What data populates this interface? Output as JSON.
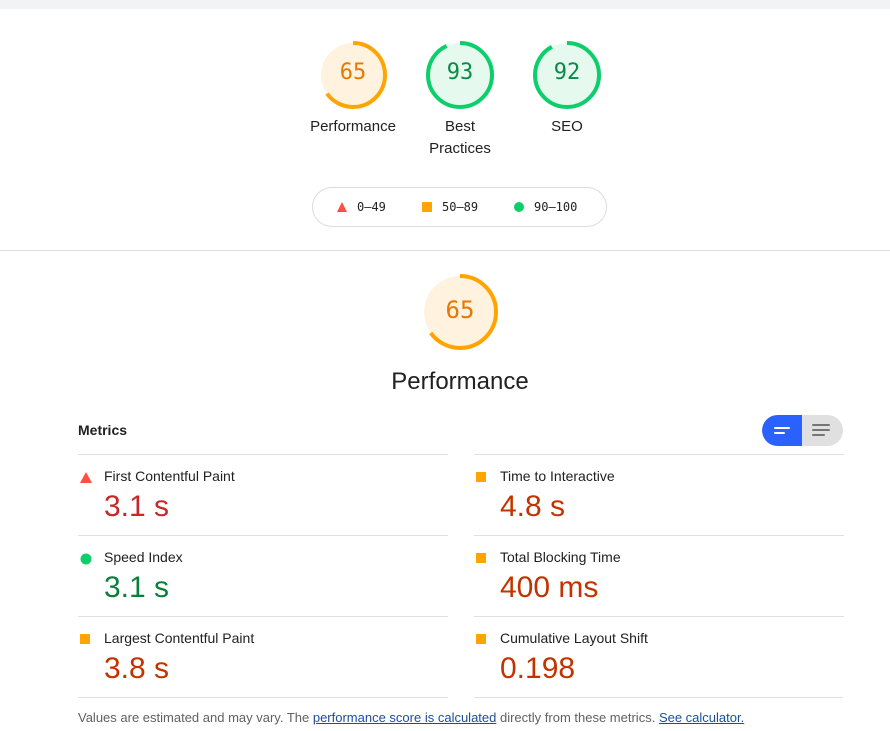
{
  "scores": [
    {
      "value": "65",
      "label": "Performance",
      "score": 65,
      "color": "#ffa400",
      "fill": "#fff3e0"
    },
    {
      "value": "93",
      "label": "Best Practices",
      "score": 93,
      "color": "#0cce6b",
      "fill": "#e6f9ee"
    },
    {
      "value": "92",
      "label": "SEO",
      "score": 92,
      "color": "#0cce6b",
      "fill": "#e6f9ee"
    }
  ],
  "legend": [
    {
      "range": "0–49",
      "shape": "triangle",
      "color": "#ff4e42"
    },
    {
      "range": "50–89",
      "shape": "square",
      "color": "#ffa400"
    },
    {
      "range": "90–100",
      "shape": "circle",
      "color": "#0cce6b"
    }
  ],
  "performance": {
    "value": "65",
    "score": 65,
    "title": "Performance",
    "color": "#ffa400",
    "fill": "#fff3e0"
  },
  "metrics": {
    "heading": "Metrics",
    "left": [
      {
        "label": "First Contentful Paint",
        "value": "3.1 s",
        "status": "fail",
        "color": "#c62828"
      },
      {
        "label": "Speed Index",
        "value": "3.1 s",
        "status": "pass",
        "color": "#0a7e3a"
      },
      {
        "label": "Largest Contentful Paint",
        "value": "3.8 s",
        "status": "average",
        "color": "#c33300"
      }
    ],
    "right": [
      {
        "label": "Time to Interactive",
        "value": "4.8 s",
        "status": "average",
        "color": "#c33300"
      },
      {
        "label": "Total Blocking Time",
        "value": "400 ms",
        "status": "average",
        "color": "#c33300"
      },
      {
        "label": "Cumulative Layout Shift",
        "value": "0.198",
        "status": "average",
        "color": "#c33300"
      }
    ]
  },
  "toggle": {
    "active": "compact-view-icon",
    "inactive": "expanded-view-icon",
    "accent": "#2962ff"
  },
  "footnote": {
    "prefix": "Values are estimated and may vary. The ",
    "link1": "performance score is calculated",
    "middle": " directly from these metrics.",
    "link2": "See calculator."
  }
}
